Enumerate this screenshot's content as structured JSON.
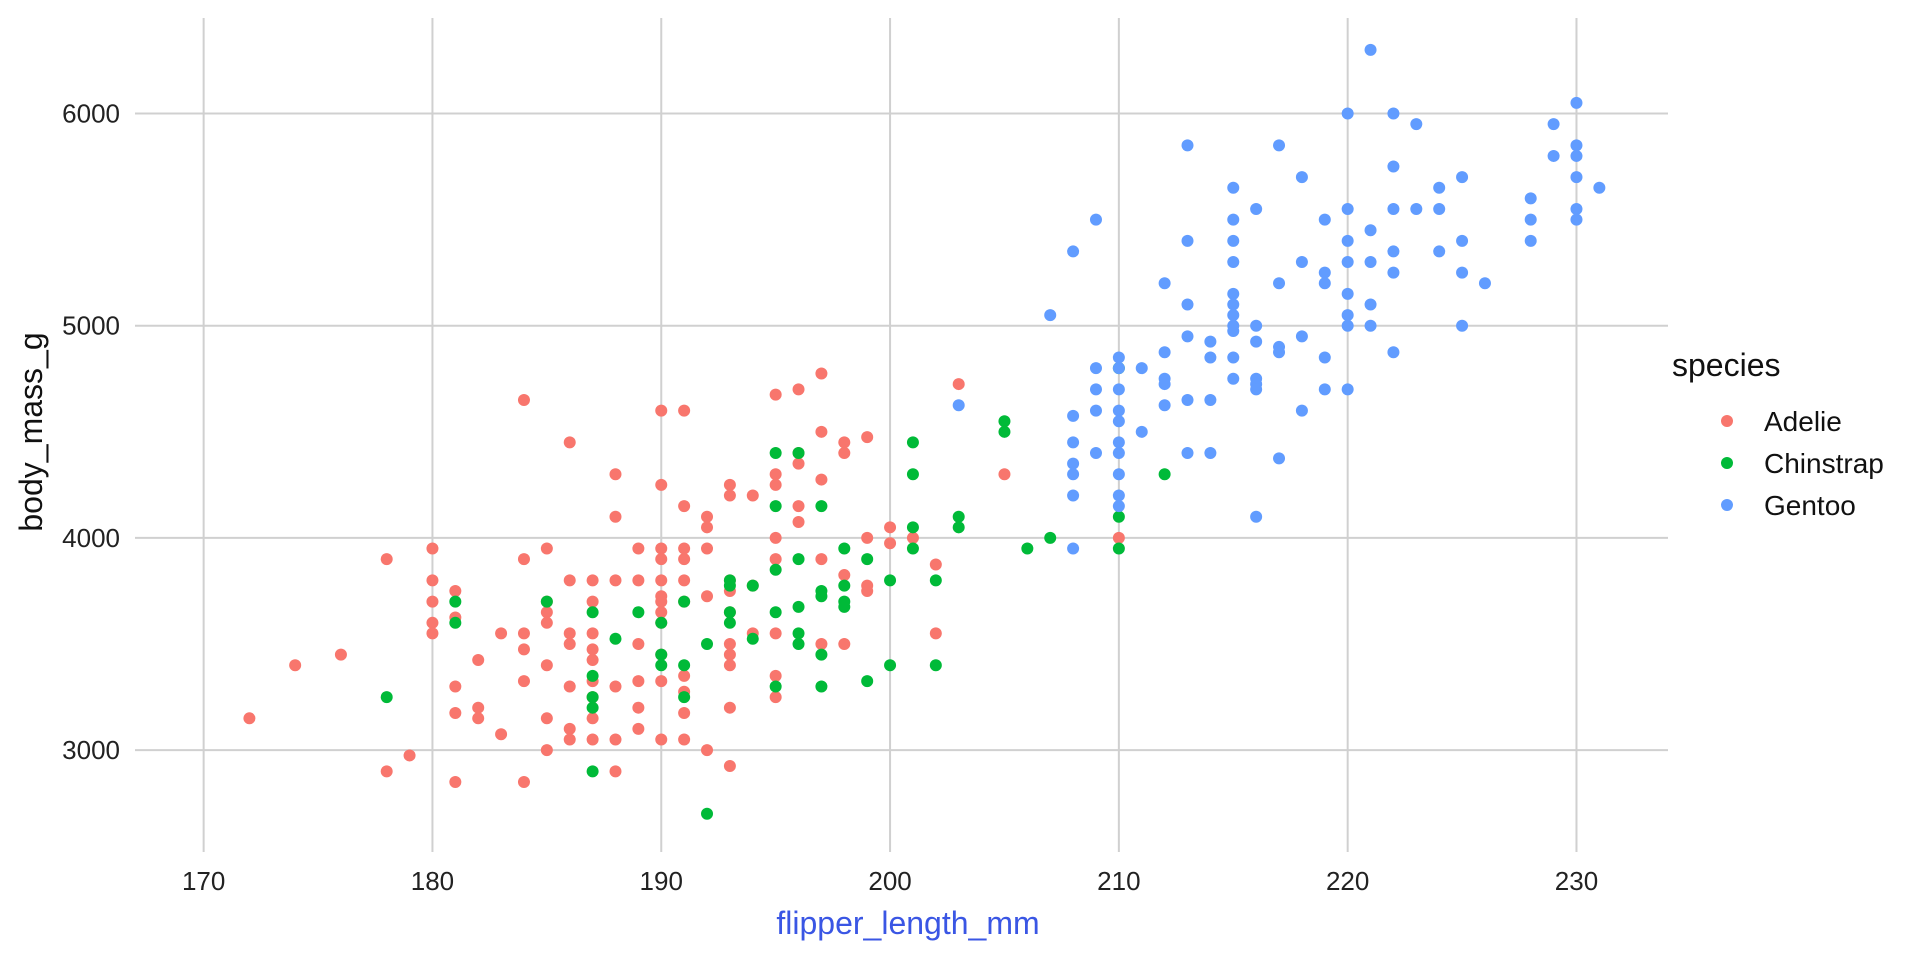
{
  "chart_data": {
    "type": "scatter",
    "xlabel": "flipper_length_mm",
    "ylabel": "body_mass_g",
    "xlim": [
      167,
      234
    ],
    "ylim": [
      2520,
      6450
    ],
    "x_ticks": [
      170,
      180,
      190,
      200,
      210,
      220,
      230
    ],
    "y_ticks": [
      3000,
      4000,
      5000,
      6000
    ],
    "grid": true,
    "legend": {
      "title": "species",
      "position": "right"
    },
    "series": [
      {
        "name": "Adelie",
        "color": "#F8766D",
        "points": [
          [
            172,
            3150
          ],
          [
            174,
            3400
          ],
          [
            176,
            3450
          ],
          [
            178,
            3900
          ],
          [
            178,
            2900
          ],
          [
            179,
            2975
          ],
          [
            180,
            3950
          ],
          [
            180,
            3800
          ],
          [
            180,
            3700
          ],
          [
            180,
            3600
          ],
          [
            180,
            3550
          ],
          [
            181,
            3750
          ],
          [
            181,
            3625
          ],
          [
            181,
            3300
          ],
          [
            181,
            3175
          ],
          [
            181,
            2850
          ],
          [
            182,
            3425
          ],
          [
            182,
            3200
          ],
          [
            182,
            3150
          ],
          [
            183,
            3550
          ],
          [
            183,
            3075
          ],
          [
            184,
            4650
          ],
          [
            184,
            3900
          ],
          [
            184,
            3550
          ],
          [
            184,
            3475
          ],
          [
            184,
            3325
          ],
          [
            184,
            2850
          ],
          [
            185,
            3950
          ],
          [
            185,
            3700
          ],
          [
            185,
            3650
          ],
          [
            185,
            3600
          ],
          [
            185,
            3400
          ],
          [
            185,
            3150
          ],
          [
            185,
            3000
          ],
          [
            186,
            4450
          ],
          [
            186,
            3800
          ],
          [
            186,
            3550
          ],
          [
            186,
            3500
          ],
          [
            186,
            3300
          ],
          [
            186,
            3100
          ],
          [
            186,
            3050
          ],
          [
            187,
            3800
          ],
          [
            187,
            3700
          ],
          [
            187,
            3550
          ],
          [
            187,
            3475
          ],
          [
            187,
            3425
          ],
          [
            187,
            3325
          ],
          [
            187,
            3250
          ],
          [
            187,
            3150
          ],
          [
            187,
            3050
          ],
          [
            188,
            4300
          ],
          [
            188,
            4100
          ],
          [
            188,
            3800
          ],
          [
            188,
            3300
          ],
          [
            188,
            3050
          ],
          [
            188,
            2900
          ],
          [
            189,
            3950
          ],
          [
            189,
            3800
          ],
          [
            189,
            3500
          ],
          [
            189,
            3325
          ],
          [
            189,
            3200
          ],
          [
            189,
            3100
          ],
          [
            190,
            4600
          ],
          [
            190,
            4250
          ],
          [
            190,
            3950
          ],
          [
            190,
            3900
          ],
          [
            190,
            3800
          ],
          [
            190,
            3725
          ],
          [
            190,
            3700
          ],
          [
            190,
            3650
          ],
          [
            190,
            3600
          ],
          [
            190,
            3450
          ],
          [
            190,
            3325
          ],
          [
            190,
            3050
          ],
          [
            191,
            4600
          ],
          [
            191,
            4150
          ],
          [
            191,
            3950
          ],
          [
            191,
            3900
          ],
          [
            191,
            3800
          ],
          [
            191,
            3700
          ],
          [
            191,
            3350
          ],
          [
            191,
            3275
          ],
          [
            191,
            3175
          ],
          [
            191,
            3050
          ],
          [
            192,
            4100
          ],
          [
            192,
            4050
          ],
          [
            192,
            3950
          ],
          [
            192,
            3725
          ],
          [
            192,
            3000
          ],
          [
            193,
            4250
          ],
          [
            193,
            4200
          ],
          [
            193,
            3800
          ],
          [
            193,
            3750
          ],
          [
            193,
            3650
          ],
          [
            193,
            3500
          ],
          [
            193,
            3450
          ],
          [
            193,
            3400
          ],
          [
            193,
            3200
          ],
          [
            193,
            2925
          ],
          [
            194,
            4200
          ],
          [
            194,
            3775
          ],
          [
            194,
            3550
          ],
          [
            195,
            4675
          ],
          [
            195,
            4300
          ],
          [
            195,
            4250
          ],
          [
            195,
            4000
          ],
          [
            195,
            3900
          ],
          [
            195,
            3550
          ],
          [
            195,
            3350
          ],
          [
            195,
            3250
          ],
          [
            196,
            4700
          ],
          [
            196,
            4400
          ],
          [
            196,
            4350
          ],
          [
            196,
            4150
          ],
          [
            196,
            4075
          ],
          [
            197,
            4775
          ],
          [
            197,
            4500
          ],
          [
            197,
            4275
          ],
          [
            197,
            3900
          ],
          [
            197,
            3500
          ],
          [
            198,
            4450
          ],
          [
            198,
            4400
          ],
          [
            198,
            3825
          ],
          [
            198,
            3500
          ],
          [
            199,
            4475
          ],
          [
            199,
            4000
          ],
          [
            199,
            3775
          ],
          [
            199,
            3750
          ],
          [
            200,
            4050
          ],
          [
            200,
            3975
          ],
          [
            201,
            4000
          ],
          [
            202,
            3875
          ],
          [
            202,
            3550
          ],
          [
            203,
            4725
          ],
          [
            205,
            4300
          ],
          [
            210,
            4000
          ]
        ]
      },
      {
        "name": "Chinstrap",
        "color": "#00BA38",
        "points": [
          [
            178,
            3250
          ],
          [
            181,
            3700
          ],
          [
            181,
            3600
          ],
          [
            185,
            3700
          ],
          [
            187,
            3650
          ],
          [
            187,
            3350
          ],
          [
            187,
            3250
          ],
          [
            187,
            3200
          ],
          [
            187,
            2900
          ],
          [
            188,
            3525
          ],
          [
            189,
            3650
          ],
          [
            190,
            3600
          ],
          [
            190,
            3450
          ],
          [
            190,
            3400
          ],
          [
            191,
            3700
          ],
          [
            191,
            3400
          ],
          [
            191,
            3250
          ],
          [
            192,
            3500
          ],
          [
            192,
            2700
          ],
          [
            193,
            3800
          ],
          [
            193,
            3775
          ],
          [
            193,
            3650
          ],
          [
            193,
            3600
          ],
          [
            194,
            3775
          ],
          [
            194,
            3525
          ],
          [
            195,
            4400
          ],
          [
            195,
            4150
          ],
          [
            195,
            3850
          ],
          [
            195,
            3650
          ],
          [
            195,
            3300
          ],
          [
            196,
            4400
          ],
          [
            196,
            3900
          ],
          [
            196,
            3675
          ],
          [
            196,
            3550
          ],
          [
            196,
            3500
          ],
          [
            197,
            4150
          ],
          [
            197,
            3750
          ],
          [
            197,
            3725
          ],
          [
            197,
            3450
          ],
          [
            197,
            3300
          ],
          [
            198,
            3950
          ],
          [
            198,
            3775
          ],
          [
            198,
            3700
          ],
          [
            198,
            3675
          ],
          [
            199,
            3900
          ],
          [
            199,
            3325
          ],
          [
            200,
            3800
          ],
          [
            200,
            3400
          ],
          [
            201,
            4450
          ],
          [
            201,
            4300
          ],
          [
            201,
            4050
          ],
          [
            201,
            3950
          ],
          [
            202,
            3800
          ],
          [
            202,
            3400
          ],
          [
            203,
            4100
          ],
          [
            203,
            4050
          ],
          [
            205,
            4550
          ],
          [
            205,
            4500
          ],
          [
            206,
            3950
          ],
          [
            207,
            4000
          ],
          [
            210,
            4800
          ],
          [
            210,
            4100
          ],
          [
            210,
            3950
          ],
          [
            212,
            4300
          ]
        ]
      },
      {
        "name": "Gentoo",
        "color": "#619CFF",
        "points": [
          [
            203,
            4625
          ],
          [
            207,
            5050
          ],
          [
            208,
            5350
          ],
          [
            208,
            4575
          ],
          [
            208,
            4450
          ],
          [
            208,
            4350
          ],
          [
            208,
            4300
          ],
          [
            208,
            4200
          ],
          [
            208,
            3950
          ],
          [
            209,
            5500
          ],
          [
            209,
            4800
          ],
          [
            209,
            4700
          ],
          [
            209,
            4600
          ],
          [
            209,
            4400
          ],
          [
            210,
            4850
          ],
          [
            210,
            4800
          ],
          [
            210,
            4700
          ],
          [
            210,
            4600
          ],
          [
            210,
            4550
          ],
          [
            210,
            4450
          ],
          [
            210,
            4400
          ],
          [
            210,
            4300
          ],
          [
            210,
            4200
          ],
          [
            210,
            4150
          ],
          [
            211,
            4800
          ],
          [
            211,
            4500
          ],
          [
            212,
            5200
          ],
          [
            212,
            4875
          ],
          [
            212,
            4750
          ],
          [
            212,
            4725
          ],
          [
            212,
            4625
          ],
          [
            213,
            5850
          ],
          [
            213,
            5400
          ],
          [
            213,
            5100
          ],
          [
            213,
            4950
          ],
          [
            213,
            4650
          ],
          [
            213,
            4400
          ],
          [
            214,
            4925
          ],
          [
            214,
            4850
          ],
          [
            214,
            4650
          ],
          [
            214,
            4400
          ],
          [
            215,
            5650
          ],
          [
            215,
            5500
          ],
          [
            215,
            5400
          ],
          [
            215,
            5300
          ],
          [
            215,
            5150
          ],
          [
            215,
            5100
          ],
          [
            215,
            5050
          ],
          [
            215,
            5000
          ],
          [
            215,
            4975
          ],
          [
            215,
            4850
          ],
          [
            215,
            4750
          ],
          [
            216,
            5550
          ],
          [
            216,
            5000
          ],
          [
            216,
            4925
          ],
          [
            216,
            4750
          ],
          [
            216,
            4725
          ],
          [
            216,
            4700
          ],
          [
            216,
            4100
          ],
          [
            217,
            5850
          ],
          [
            217,
            5200
          ],
          [
            217,
            4900
          ],
          [
            217,
            4875
          ],
          [
            217,
            4375
          ],
          [
            218,
            5700
          ],
          [
            218,
            5300
          ],
          [
            218,
            4950
          ],
          [
            218,
            4600
          ],
          [
            219,
            5500
          ],
          [
            219,
            5250
          ],
          [
            219,
            5200
          ],
          [
            219,
            4850
          ],
          [
            219,
            4700
          ],
          [
            220,
            6000
          ],
          [
            220,
            5550
          ],
          [
            220,
            5400
          ],
          [
            220,
            5300
          ],
          [
            220,
            5150
          ],
          [
            220,
            5050
          ],
          [
            220,
            5000
          ],
          [
            220,
            4700
          ],
          [
            221,
            6300
          ],
          [
            221,
            5450
          ],
          [
            221,
            5300
          ],
          [
            221,
            5100
          ],
          [
            221,
            5000
          ],
          [
            222,
            6000
          ],
          [
            222,
            5750
          ],
          [
            222,
            5550
          ],
          [
            222,
            5350
          ],
          [
            222,
            5250
          ],
          [
            222,
            4875
          ],
          [
            223,
            5950
          ],
          [
            223,
            5550
          ],
          [
            224,
            5650
          ],
          [
            224,
            5550
          ],
          [
            224,
            5350
          ],
          [
            225,
            5700
          ],
          [
            225,
            5400
          ],
          [
            225,
            5250
          ],
          [
            225,
            5000
          ],
          [
            226,
            5200
          ],
          [
            228,
            5600
          ],
          [
            228,
            5500
          ],
          [
            228,
            5400
          ],
          [
            229,
            5950
          ],
          [
            229,
            5800
          ],
          [
            230,
            6050
          ],
          [
            230,
            5850
          ],
          [
            230,
            5800
          ],
          [
            230,
            5700
          ],
          [
            230,
            5550
          ],
          [
            230,
            5500
          ],
          [
            231,
            5650
          ]
        ]
      }
    ]
  }
}
